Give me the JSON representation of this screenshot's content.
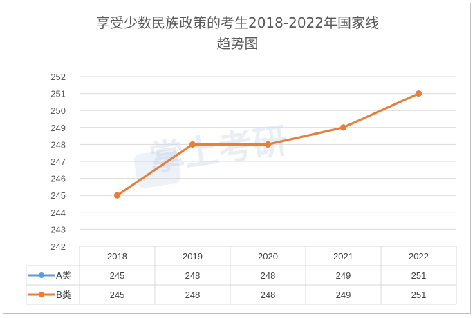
{
  "chart_data": {
    "type": "line",
    "title_line1": "享受少数民族政策的考生2018-2022年国家线",
    "title_line2": "趋势图",
    "categories": [
      "2018",
      "2019",
      "2020",
      "2021",
      "2022"
    ],
    "series": [
      {
        "name": "A类",
        "values": [
          245,
          248,
          248,
          249,
          251
        ],
        "color": "#5b9bd5"
      },
      {
        "name": "B类",
        "values": [
          245,
          248,
          248,
          249,
          251
        ],
        "color": "#ed7d31"
      }
    ],
    "ylim": [
      242,
      252
    ],
    "ytick_step": 1,
    "grid": true,
    "legend": "data-table"
  },
  "watermark": "掌上考研"
}
